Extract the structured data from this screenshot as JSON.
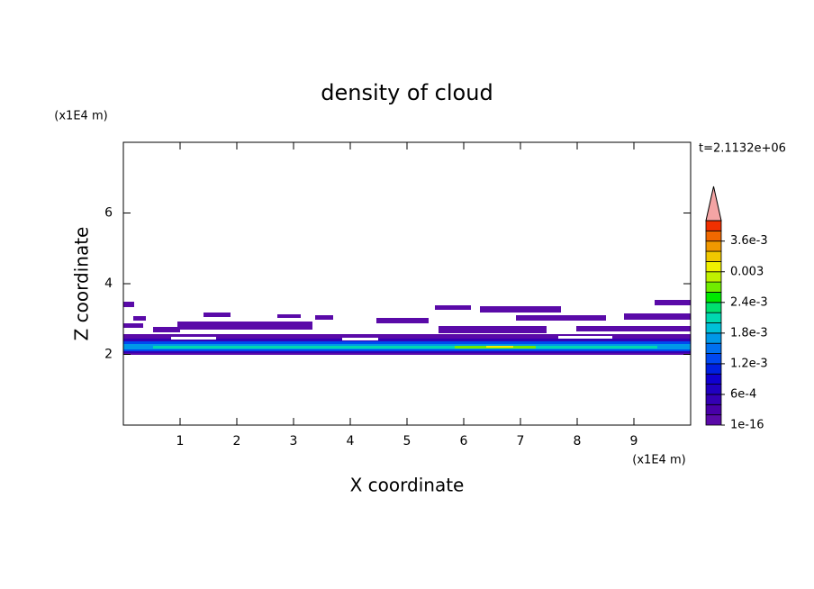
{
  "chart_data": {
    "type": "contour",
    "title": "density of cloud",
    "x_label": "X coordinate",
    "y_label": "Z coordinate",
    "x_unit": "(x1E4 m)",
    "y_unit": "(x1E4 m)",
    "annotation": "t=2.1132e+06",
    "xlim": [
      0,
      10
    ],
    "ylim": [
      0,
      8
    ],
    "xticks": [
      1,
      2,
      3,
      4,
      5,
      6,
      7,
      8,
      9
    ],
    "yticks": [
      2,
      4,
      6
    ],
    "colorbar": {
      "clim": [
        0,
        0.004
      ],
      "colors": [
        "#5a0aa8",
        "#4800a8",
        "#3400b4",
        "#2000c0",
        "#1000d0",
        "#0020e0",
        "#0048f0",
        "#0070f0",
        "#0098e8",
        "#00c0d8",
        "#00d8b0",
        "#00e070",
        "#00e800",
        "#70ec00",
        "#c0f000",
        "#f0f000",
        "#f0c800",
        "#f09800",
        "#f06800",
        "#f03000"
      ],
      "extend_color": "#f4a4a4",
      "ticks": [
        1e-16,
        {
          "value": 0.0006,
          "label": "6e-4"
        },
        {
          "value": 0.0012,
          "label": "1.2e-3"
        },
        {
          "value": 0.0018,
          "label": "1.8e-3"
        },
        {
          "value": 0.0024,
          "label": "2.4e-3"
        },
        0.003,
        {
          "value": 0.0036,
          "label": "3.6e-3"
        }
      ]
    }
  }
}
